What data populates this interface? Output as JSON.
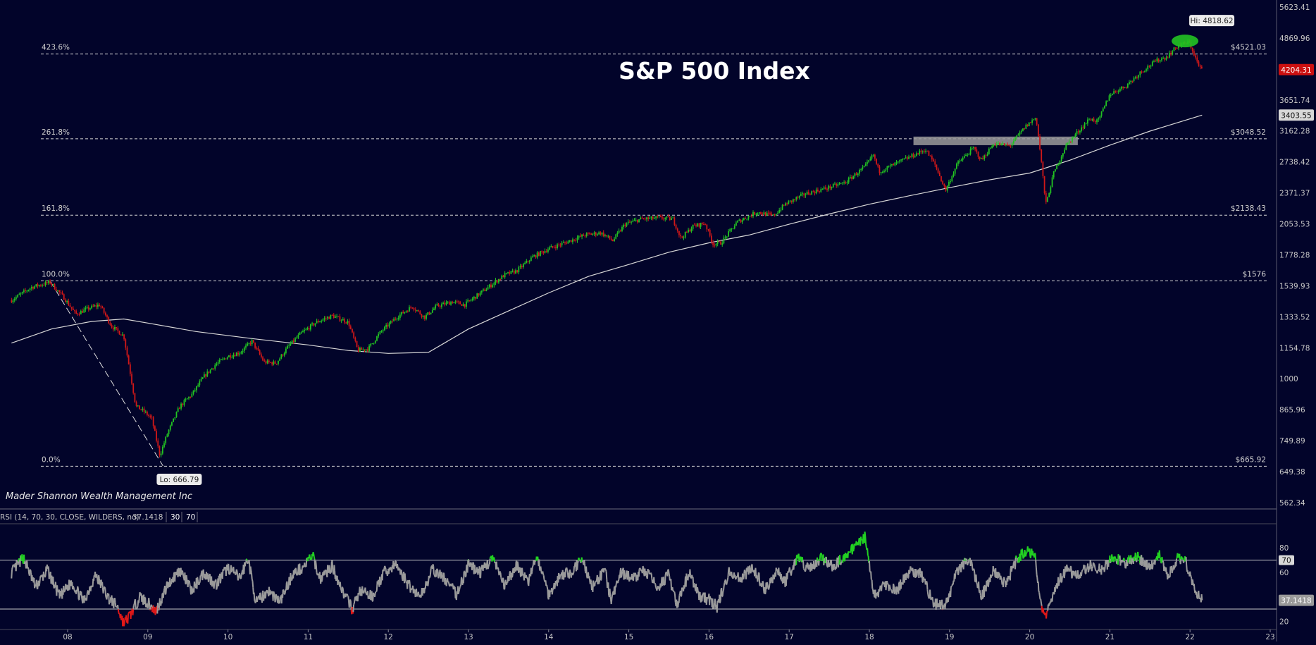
{
  "chart_data": {
    "type": "candlestick",
    "title": "S&P 500 Index",
    "watermark": "Mader Shannon Wealth Management Inc",
    "colors": {
      "background": "#02042a",
      "up": "#22c322",
      "down": "#d01818",
      "moving_average": "#d8d8d8",
      "zone": "#9a9a9a",
      "rsi_line": "#9a9a9a",
      "last_price_badge": "#cc1010"
    },
    "x_axis": {
      "ticks": [
        "08",
        "09",
        "10",
        "11",
        "12",
        "13",
        "14",
        "15",
        "16",
        "17",
        "18",
        "19",
        "20",
        "21",
        "22",
        "23"
      ],
      "range": [
        2007.3,
        2023.0
      ]
    },
    "y_axis": {
      "scale": "log",
      "range": [
        562.34,
        5623.41
      ],
      "ticks": [
        "5623.41",
        "4869.96",
        "4204.31",
        "3651.74",
        "3403.55",
        "3162.28",
        "2738.42",
        "2371.37",
        "2053.53",
        "1778.28",
        "1539.93",
        "1333.52",
        "1154.78",
        "1000",
        "865.96",
        "749.89",
        "649.38",
        "562.34"
      ],
      "tick_values": [
        5623.41,
        4869.96,
        4204.31,
        3651.74,
        3403.55,
        3162.28,
        2738.42,
        2371.37,
        2053.53,
        1778.28,
        1539.93,
        1333.52,
        1154.78,
        1000,
        865.96,
        749.89,
        649.38,
        562.34
      ]
    },
    "last_price": {
      "label": "4204.31",
      "value": 4204.31
    },
    "moving_average_last": {
      "label": "3403.55",
      "value": 3403.55
    },
    "extremes": {
      "high": {
        "label": "Hi: 4818.62",
        "value": 4818.62,
        "x": 2021.99
      },
      "low": {
        "label": "Lo: 666.79",
        "value": 666.79,
        "x": 2009.19
      }
    },
    "fibonacci_levels": [
      {
        "pct": "423.6%",
        "price_label": "$4521.03",
        "value": 4521.03
      },
      {
        "pct": "261.8%",
        "price_label": "$3048.52",
        "value": 3048.52
      },
      {
        "pct": "161.8%",
        "price_label": "$2138.43",
        "value": 2138.43
      },
      {
        "pct": "100.0%",
        "price_label": "$1576",
        "value": 1576
      },
      {
        "pct": "0.0%",
        "price_label": "$665.92",
        "value": 665.92
      }
    ],
    "trend_line": [
      {
        "x": 2007.78,
        "y": 1576
      },
      {
        "x": 2009.19,
        "y": 666.79
      }
    ],
    "resistance_zone": {
      "x_start": 2018.55,
      "x_end": 2020.6,
      "y_low": 2960,
      "y_high": 3080
    },
    "price_path": [
      {
        "x": 2007.3,
        "y": 1440
      },
      {
        "x": 2007.55,
        "y": 1530
      },
      {
        "x": 2007.78,
        "y": 1565
      },
      {
        "x": 2007.95,
        "y": 1460
      },
      {
        "x": 2008.1,
        "y": 1350
      },
      {
        "x": 2008.25,
        "y": 1385
      },
      {
        "x": 2008.4,
        "y": 1410
      },
      {
        "x": 2008.55,
        "y": 1275
      },
      {
        "x": 2008.7,
        "y": 1220
      },
      {
        "x": 2008.78,
        "y": 1030
      },
      {
        "x": 2008.85,
        "y": 880
      },
      {
        "x": 2008.95,
        "y": 860
      },
      {
        "x": 2009.05,
        "y": 830
      },
      {
        "x": 2009.15,
        "y": 700
      },
      {
        "x": 2009.25,
        "y": 780
      },
      {
        "x": 2009.4,
        "y": 880
      },
      {
        "x": 2009.55,
        "y": 930
      },
      {
        "x": 2009.7,
        "y": 1010
      },
      {
        "x": 2009.85,
        "y": 1070
      },
      {
        "x": 2010.0,
        "y": 1110
      },
      {
        "x": 2010.15,
        "y": 1130
      },
      {
        "x": 2010.3,
        "y": 1190
      },
      {
        "x": 2010.45,
        "y": 1080
      },
      {
        "x": 2010.6,
        "y": 1075
      },
      {
        "x": 2010.75,
        "y": 1160
      },
      {
        "x": 2010.9,
        "y": 1230
      },
      {
        "x": 2011.1,
        "y": 1300
      },
      {
        "x": 2011.3,
        "y": 1340
      },
      {
        "x": 2011.5,
        "y": 1300
      },
      {
        "x": 2011.62,
        "y": 1140
      },
      {
        "x": 2011.75,
        "y": 1150
      },
      {
        "x": 2011.9,
        "y": 1240
      },
      {
        "x": 2012.1,
        "y": 1330
      },
      {
        "x": 2012.3,
        "y": 1400
      },
      {
        "x": 2012.45,
        "y": 1330
      },
      {
        "x": 2012.6,
        "y": 1400
      },
      {
        "x": 2012.8,
        "y": 1430
      },
      {
        "x": 2012.95,
        "y": 1410
      },
      {
        "x": 2013.2,
        "y": 1510
      },
      {
        "x": 2013.45,
        "y": 1620
      },
      {
        "x": 2013.6,
        "y": 1650
      },
      {
        "x": 2013.8,
        "y": 1760
      },
      {
        "x": 2014.0,
        "y": 1830
      },
      {
        "x": 2014.2,
        "y": 1880
      },
      {
        "x": 2014.45,
        "y": 1950
      },
      {
        "x": 2014.65,
        "y": 1970
      },
      {
        "x": 2014.8,
        "y": 1900
      },
      {
        "x": 2014.95,
        "y": 2050
      },
      {
        "x": 2015.15,
        "y": 2100
      },
      {
        "x": 2015.4,
        "y": 2110
      },
      {
        "x": 2015.55,
        "y": 2100
      },
      {
        "x": 2015.65,
        "y": 1920
      },
      {
        "x": 2015.8,
        "y": 2030
      },
      {
        "x": 2015.95,
        "y": 2060
      },
      {
        "x": 2016.05,
        "y": 1870
      },
      {
        "x": 2016.15,
        "y": 1880
      },
      {
        "x": 2016.35,
        "y": 2070
      },
      {
        "x": 2016.6,
        "y": 2170
      },
      {
        "x": 2016.8,
        "y": 2130
      },
      {
        "x": 2016.95,
        "y": 2250
      },
      {
        "x": 2017.2,
        "y": 2360
      },
      {
        "x": 2017.45,
        "y": 2420
      },
      {
        "x": 2017.7,
        "y": 2490
      },
      {
        "x": 2017.95,
        "y": 2680
      },
      {
        "x": 2018.05,
        "y": 2830
      },
      {
        "x": 2018.12,
        "y": 2620
      },
      {
        "x": 2018.3,
        "y": 2700
      },
      {
        "x": 2018.5,
        "y": 2800
      },
      {
        "x": 2018.7,
        "y": 2900
      },
      {
        "x": 2018.82,
        "y": 2700
      },
      {
        "x": 2018.95,
        "y": 2400
      },
      {
        "x": 2019.1,
        "y": 2720
      },
      {
        "x": 2019.3,
        "y": 2920
      },
      {
        "x": 2019.4,
        "y": 2760
      },
      {
        "x": 2019.55,
        "y": 2980
      },
      {
        "x": 2019.75,
        "y": 2950
      },
      {
        "x": 2019.95,
        "y": 3230
      },
      {
        "x": 2020.08,
        "y": 3370
      },
      {
        "x": 2020.15,
        "y": 2700
      },
      {
        "x": 2020.2,
        "y": 2240
      },
      {
        "x": 2020.3,
        "y": 2600
      },
      {
        "x": 2020.45,
        "y": 2950
      },
      {
        "x": 2020.6,
        "y": 3150
      },
      {
        "x": 2020.75,
        "y": 3350
      },
      {
        "x": 2020.85,
        "y": 3300
      },
      {
        "x": 2021.0,
        "y": 3750
      },
      {
        "x": 2021.2,
        "y": 3900
      },
      {
        "x": 2021.4,
        "y": 4180
      },
      {
        "x": 2021.6,
        "y": 4400
      },
      {
        "x": 2021.7,
        "y": 4450
      },
      {
        "x": 2021.85,
        "y": 4700
      },
      {
        "x": 2021.99,
        "y": 4770
      },
      {
        "x": 2022.05,
        "y": 4520
      },
      {
        "x": 2022.1,
        "y": 4300
      },
      {
        "x": 2022.15,
        "y": 4204
      }
    ],
    "moving_average": [
      {
        "x": 2007.3,
        "y": 1180
      },
      {
        "x": 2007.8,
        "y": 1260
      },
      {
        "x": 2008.3,
        "y": 1305
      },
      {
        "x": 2008.7,
        "y": 1320
      },
      {
        "x": 2009.0,
        "y": 1295
      },
      {
        "x": 2009.6,
        "y": 1245
      },
      {
        "x": 2010.3,
        "y": 1205
      },
      {
        "x": 2011.0,
        "y": 1170
      },
      {
        "x": 2011.5,
        "y": 1140
      },
      {
        "x": 2012.0,
        "y": 1125
      },
      {
        "x": 2012.5,
        "y": 1130
      },
      {
        "x": 2013.0,
        "y": 1260
      },
      {
        "x": 2013.5,
        "y": 1370
      },
      {
        "x": 2014.0,
        "y": 1490
      },
      {
        "x": 2014.5,
        "y": 1610
      },
      {
        "x": 2015.0,
        "y": 1700
      },
      {
        "x": 2015.5,
        "y": 1800
      },
      {
        "x": 2016.0,
        "y": 1880
      },
      {
        "x": 2016.5,
        "y": 1950
      },
      {
        "x": 2017.0,
        "y": 2050
      },
      {
        "x": 2017.5,
        "y": 2150
      },
      {
        "x": 2018.0,
        "y": 2250
      },
      {
        "x": 2018.5,
        "y": 2340
      },
      {
        "x": 2019.0,
        "y": 2430
      },
      {
        "x": 2019.5,
        "y": 2520
      },
      {
        "x": 2020.0,
        "y": 2600
      },
      {
        "x": 2020.5,
        "y": 2760
      },
      {
        "x": 2021.0,
        "y": 2960
      },
      {
        "x": 2021.5,
        "y": 3160
      },
      {
        "x": 2022.15,
        "y": 3403.55
      }
    ],
    "rsi": {
      "label": "RSI (14, 70, 30, CLOSE, WILDERS, no)",
      "value_label": "37.1418",
      "value": 37.1418,
      "oversold_label": "30",
      "overbought_label": "70",
      "range": [
        15,
        98
      ],
      "ticks": [
        "80",
        "70",
        "60",
        "37.1418",
        "20"
      ],
      "tick_values": [
        80,
        70,
        60,
        37.1418,
        20
      ],
      "levels": [
        70,
        30
      ],
      "points": [
        {
          "x": 2007.3,
          "y": 60
        },
        {
          "x": 2007.45,
          "y": 72
        },
        {
          "x": 2007.6,
          "y": 48
        },
        {
          "x": 2007.75,
          "y": 62
        },
        {
          "x": 2007.9,
          "y": 40
        },
        {
          "x": 2008.05,
          "y": 52
        },
        {
          "x": 2008.2,
          "y": 36
        },
        {
          "x": 2008.35,
          "y": 58
        },
        {
          "x": 2008.5,
          "y": 40
        },
        {
          "x": 2008.62,
          "y": 32
        },
        {
          "x": 2008.7,
          "y": 18
        },
        {
          "x": 2008.78,
          "y": 25
        },
        {
          "x": 2008.9,
          "y": 40
        },
        {
          "x": 2009.0,
          "y": 35
        },
        {
          "x": 2009.1,
          "y": 28
        },
        {
          "x": 2009.25,
          "y": 50
        },
        {
          "x": 2009.4,
          "y": 62
        },
        {
          "x": 2009.55,
          "y": 45
        },
        {
          "x": 2009.7,
          "y": 60
        },
        {
          "x": 2009.85,
          "y": 50
        },
        {
          "x": 2010.0,
          "y": 64
        },
        {
          "x": 2010.15,
          "y": 55
        },
        {
          "x": 2010.25,
          "y": 72
        },
        {
          "x": 2010.35,
          "y": 35
        },
        {
          "x": 2010.5,
          "y": 45
        },
        {
          "x": 2010.65,
          "y": 36
        },
        {
          "x": 2010.8,
          "y": 58
        },
        {
          "x": 2010.95,
          "y": 65
        },
        {
          "x": 2011.05,
          "y": 74
        },
        {
          "x": 2011.15,
          "y": 55
        },
        {
          "x": 2011.3,
          "y": 65
        },
        {
          "x": 2011.45,
          "y": 42
        },
        {
          "x": 2011.55,
          "y": 30
        },
        {
          "x": 2011.65,
          "y": 45
        },
        {
          "x": 2011.8,
          "y": 40
        },
        {
          "x": 2011.95,
          "y": 60
        },
        {
          "x": 2012.1,
          "y": 66
        },
        {
          "x": 2012.25,
          "y": 50
        },
        {
          "x": 2012.4,
          "y": 40
        },
        {
          "x": 2012.55,
          "y": 62
        },
        {
          "x": 2012.7,
          "y": 55
        },
        {
          "x": 2012.85,
          "y": 42
        },
        {
          "x": 2013.0,
          "y": 66
        },
        {
          "x": 2013.15,
          "y": 60
        },
        {
          "x": 2013.3,
          "y": 72
        },
        {
          "x": 2013.45,
          "y": 48
        },
        {
          "x": 2013.6,
          "y": 66
        },
        {
          "x": 2013.75,
          "y": 52
        },
        {
          "x": 2013.85,
          "y": 74
        },
        {
          "x": 2014.0,
          "y": 42
        },
        {
          "x": 2014.15,
          "y": 58
        },
        {
          "x": 2014.3,
          "y": 60
        },
        {
          "x": 2014.4,
          "y": 72
        },
        {
          "x": 2014.55,
          "y": 48
        },
        {
          "x": 2014.7,
          "y": 62
        },
        {
          "x": 2014.78,
          "y": 36
        },
        {
          "x": 2014.9,
          "y": 60
        },
        {
          "x": 2015.05,
          "y": 55
        },
        {
          "x": 2015.2,
          "y": 62
        },
        {
          "x": 2015.35,
          "y": 48
        },
        {
          "x": 2015.5,
          "y": 58
        },
        {
          "x": 2015.6,
          "y": 32
        },
        {
          "x": 2015.75,
          "y": 60
        },
        {
          "x": 2015.88,
          "y": 40
        },
        {
          "x": 2016.0,
          "y": 38
        },
        {
          "x": 2016.1,
          "y": 32
        },
        {
          "x": 2016.25,
          "y": 60
        },
        {
          "x": 2016.4,
          "y": 55
        },
        {
          "x": 2016.55,
          "y": 64
        },
        {
          "x": 2016.7,
          "y": 46
        },
        {
          "x": 2016.85,
          "y": 62
        },
        {
          "x": 2016.95,
          "y": 52
        },
        {
          "x": 2017.1,
          "y": 72
        },
        {
          "x": 2017.25,
          "y": 62
        },
        {
          "x": 2017.4,
          "y": 72
        },
        {
          "x": 2017.55,
          "y": 64
        },
        {
          "x": 2017.7,
          "y": 74
        },
        {
          "x": 2017.85,
          "y": 82
        },
        {
          "x": 2017.95,
          "y": 90
        },
        {
          "x": 2018.06,
          "y": 40
        },
        {
          "x": 2018.2,
          "y": 50
        },
        {
          "x": 2018.35,
          "y": 45
        },
        {
          "x": 2018.5,
          "y": 62
        },
        {
          "x": 2018.65,
          "y": 58
        },
        {
          "x": 2018.8,
          "y": 35
        },
        {
          "x": 2018.95,
          "y": 32
        },
        {
          "x": 2019.1,
          "y": 62
        },
        {
          "x": 2019.25,
          "y": 70
        },
        {
          "x": 2019.4,
          "y": 40
        },
        {
          "x": 2019.55,
          "y": 62
        },
        {
          "x": 2019.7,
          "y": 50
        },
        {
          "x": 2019.85,
          "y": 72
        },
        {
          "x": 2019.98,
          "y": 78
        },
        {
          "x": 2020.07,
          "y": 72
        },
        {
          "x": 2020.15,
          "y": 30
        },
        {
          "x": 2020.2,
          "y": 22
        },
        {
          "x": 2020.3,
          "y": 45
        },
        {
          "x": 2020.45,
          "y": 62
        },
        {
          "x": 2020.6,
          "y": 58
        },
        {
          "x": 2020.75,
          "y": 66
        },
        {
          "x": 2020.9,
          "y": 62
        },
        {
          "x": 2021.05,
          "y": 72
        },
        {
          "x": 2021.2,
          "y": 68
        },
        {
          "x": 2021.35,
          "y": 72
        },
        {
          "x": 2021.5,
          "y": 64
        },
        {
          "x": 2021.62,
          "y": 74
        },
        {
          "x": 2021.72,
          "y": 56
        },
        {
          "x": 2021.85,
          "y": 72
        },
        {
          "x": 2021.95,
          "y": 68
        },
        {
          "x": 2022.05,
          "y": 48
        },
        {
          "x": 2022.15,
          "y": 37.14
        }
      ]
    }
  }
}
